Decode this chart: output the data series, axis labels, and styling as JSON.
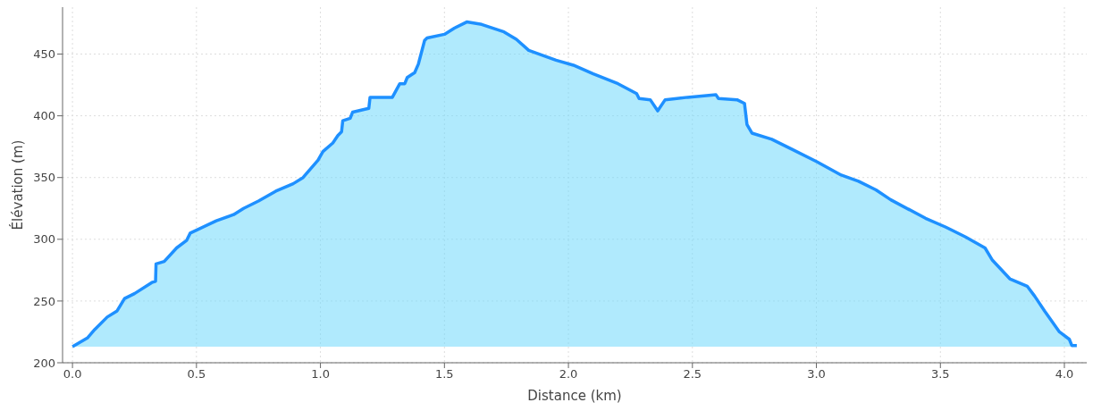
{
  "chart_data": {
    "type": "area",
    "xlabel": "Distance (km)",
    "ylabel": "Élévation (m)",
    "x": [
      0,
      0.06,
      0.09,
      0.14,
      0.18,
      0.21,
      0.25,
      0.32,
      0.335,
      0.337,
      0.37,
      0.42,
      0.46,
      0.475,
      0.58,
      0.65,
      0.69,
      0.75,
      0.82,
      0.89,
      0.93,
      0.99,
      1.01,
      1.05,
      1.07,
      1.085,
      1.09,
      1.12,
      1.13,
      1.195,
      1.2,
      1.29,
      1.32,
      1.34,
      1.35,
      1.38,
      1.395,
      1.42,
      1.43,
      1.5,
      1.54,
      1.59,
      1.65,
      1.68,
      1.74,
      1.79,
      1.84,
      1.95,
      2.02,
      2.1,
      2.2,
      2.275,
      2.285,
      2.33,
      2.36,
      2.39,
      2.48,
      2.595,
      2.605,
      2.68,
      2.71,
      2.72,
      2.74,
      2.82,
      2.9,
      3.0,
      3.1,
      3.17,
      3.24,
      3.3,
      3.44,
      3.52,
      3.6,
      3.68,
      3.71,
      3.78,
      3.85,
      3.88,
      3.92,
      3.98,
      4.02,
      4.03,
      4.05
    ],
    "series": [
      {
        "color": "#1e90ff",
        "values": [
          213,
          220,
          227,
          237,
          242,
          252,
          256,
          265,
          266,
          280,
          282,
          293,
          299,
          305,
          315,
          320,
          325,
          331,
          339,
          345,
          350,
          364,
          371,
          378,
          384,
          387,
          396,
          398,
          403,
          406,
          415,
          415,
          426,
          426,
          431,
          435,
          442,
          461,
          463,
          466,
          471,
          476,
          474,
          472,
          468,
          462,
          453,
          445,
          441,
          434,
          426,
          418,
          414,
          413,
          404,
          413,
          415,
          417,
          414,
          413,
          410,
          393,
          386,
          381,
          373,
          363,
          352,
          347,
          340,
          332,
          317,
          310,
          302,
          293,
          283,
          268,
          262,
          254,
          242,
          225,
          219,
          214,
          214
        ]
      }
    ],
    "xlim": [
      -0.04,
      4.09
    ],
    "xticks": [
      {
        "value": 0,
        "label": "0.0"
      },
      0.5,
      {
        "value": 1,
        "label": "1.0"
      },
      1.5,
      {
        "value": 2,
        "label": "2.0"
      },
      2.5,
      {
        "value": 3,
        "label": "3.0"
      },
      3.5,
      {
        "value": 4,
        "label": "4.0"
      }
    ],
    "ylim": [
      200,
      488
    ],
    "yticks": [
      200,
      250,
      300,
      350,
      400,
      450
    ],
    "grid": true,
    "legend": false,
    "marker": "none",
    "line_style": "solid"
  }
}
